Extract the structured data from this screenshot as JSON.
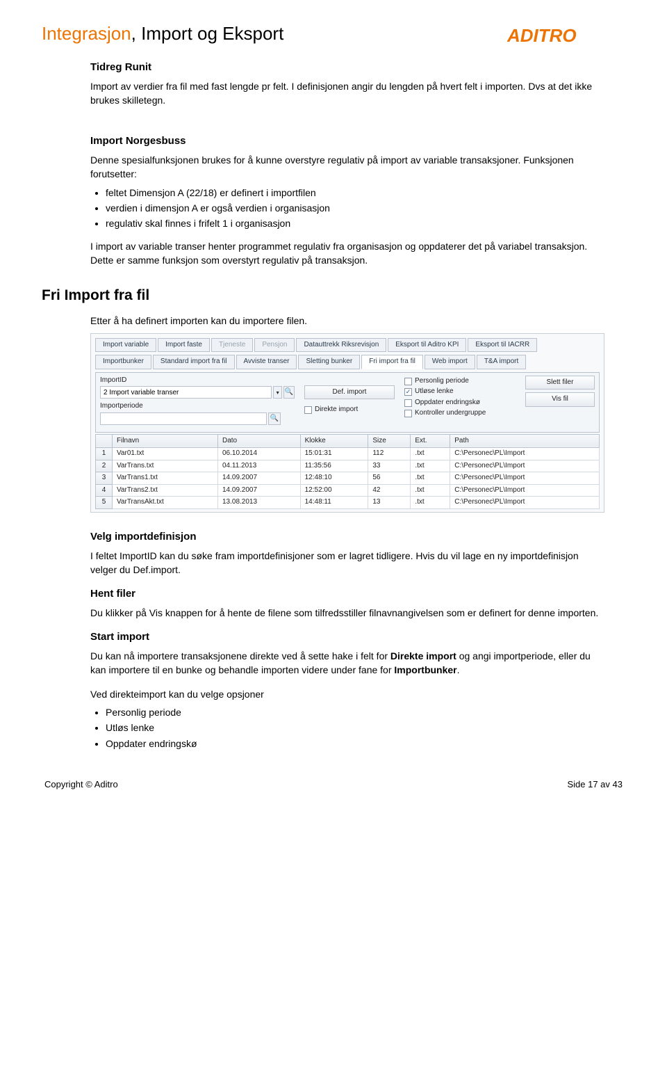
{
  "header": {
    "title_prefix": "Integrasjon",
    "title_rest": ", Import og Eksport",
    "logo_text": "ADITRO",
    "logo_color": "#ec7404"
  },
  "tidreg": {
    "heading": "Tidreg Runit",
    "para": "Import av verdier fra fil med fast lengde pr felt. I definisjonen angir du lengden på hvert felt i importen. Dvs at det ikke brukes skilletegn."
  },
  "norgesbuss": {
    "heading": "Import Norgesbuss",
    "para1": "Denne spesialfunksjonen brukes for å kunne overstyre regulativ på import av variable transaksjoner. Funksjonen forutsetter:",
    "bullets": [
      "feltet Dimensjon A (22/18) er definert i importfilen",
      "verdien i dimensjon A er også verdien i organisasjon",
      "regulativ skal finnes i frifelt 1 i organisasjon"
    ],
    "para2": "I import av variable transer henter programmet regulativ fra organisasjon og oppdaterer det på variabel transaksjon. Dette er samme funksjon som overstyrt regulativ på transaksjon."
  },
  "fri_import": {
    "heading": "Fri Import fra fil",
    "intro": "Etter å ha definert importen kan du importere filen.",
    "screenshot": {
      "tabs_top": [
        "Import variable",
        "Import faste",
        "Tjeneste",
        "Pensjon",
        "Datauttrekk Riksrevisjon",
        "Eksport til Aditro KPI",
        "Eksport til IACRR"
      ],
      "tabs_top_dim": [
        "Tjeneste",
        "Pensjon"
      ],
      "tabs_sub": [
        "Importbunker",
        "Standard import fra fil",
        "Avviste transer",
        "Sletting bunker",
        "Fri import fra fil",
        "Web import",
        "T&A import"
      ],
      "tabs_sub_active": "Fri import fra fil",
      "lbl_importid": "ImportID",
      "importid_value": "2 Import variable transer",
      "lbl_importperiode": "Importperiode",
      "importperiode_value": "",
      "btn_defimport": "Def. import",
      "btn_direkte": "Direkte import",
      "chk_personlig": "Personlig periode",
      "chk_utlose": "Utløse lenke",
      "chk_oppdater": "Oppdater endringskø",
      "chk_kontroller": "Kontroller undergruppe",
      "btn_slett": "Slett filer",
      "btn_vis": "Vis fil",
      "columns": [
        "",
        "Filnavn",
        "Dato",
        "Klokke",
        "Size",
        "Ext.",
        "Path"
      ],
      "rows": [
        [
          "1",
          "Var01.txt",
          "06.10.2014",
          "15:01:31",
          "112",
          ".txt",
          "C:\\Personec\\PL\\Import"
        ],
        [
          "2",
          "VarTrans.txt",
          "04.11.2013",
          "11:35:56",
          "33",
          ".txt",
          "C:\\Personec\\PL\\Import"
        ],
        [
          "3",
          "VarTrans1.txt",
          "14.09.2007",
          "12:48:10",
          "56",
          ".txt",
          "C:\\Personec\\PL\\Import"
        ],
        [
          "4",
          "VarTrans2.txt",
          "14.09.2007",
          "12:52:00",
          "42",
          ".txt",
          "C:\\Personec\\PL\\Import"
        ],
        [
          "5",
          "VarTransAkt.txt",
          "13.08.2013",
          "14:48:11",
          "13",
          ".txt",
          "C:\\Personec\\PL\\Import"
        ]
      ]
    },
    "velg_h": "Velg importdefinisjon",
    "velg_p": "I feltet ImportID kan du søke fram importdefinisjoner som er lagret tidligere. Hvis du vil lage en ny importdefinisjon velger du Def.import.",
    "hent_h": "Hent filer",
    "hent_p": "Du klikker på Vis knappen for å hente de filene som tilfredsstiller filnavnangivelsen som er definert for denne importen.",
    "start_h": "Start import",
    "start_p1a": "Du kan nå importere transaksjonene direkte ved å sette hake i felt for ",
    "start_p1b": "Direkte import",
    "start_p1c": " og angi importperiode, eller du kan importere til en bunke og behandle importen videre under fane for ",
    "start_p1d": "Importbunker",
    "start_p1e": ".",
    "start_p2": "Ved direkteimport kan du velge opsjoner",
    "start_bullets": [
      "Personlig periode",
      "Utløs lenke",
      "Oppdater endringskø"
    ]
  },
  "footer": {
    "left": "Copyright © Aditro",
    "right": "Side 17 av 43"
  }
}
